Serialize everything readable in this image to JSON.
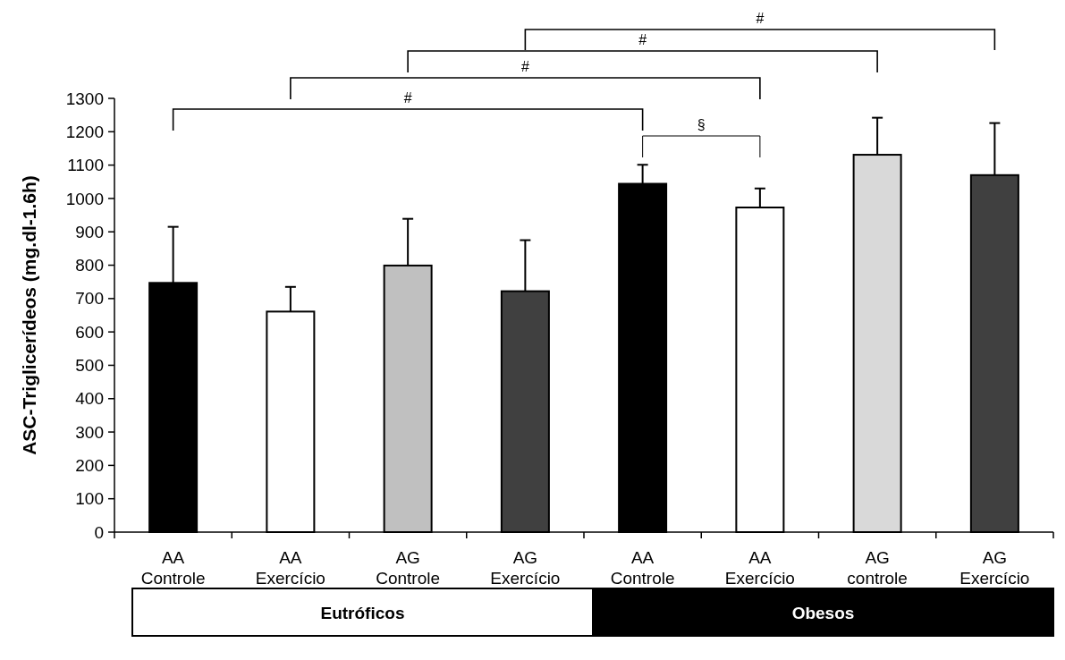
{
  "chart_data": {
    "type": "bar",
    "ylabel": "ASC-Triglicerídeos  (mg.dl-1.6h)",
    "categories": [
      "AA Controle",
      "AA Exercício",
      "AG Controle",
      "AG Exercício",
      "AA Controle",
      "AA Exercício",
      "AG controle",
      "AG Exercício"
    ],
    "values": [
      747,
      661,
      799,
      722,
      1044,
      973,
      1131,
      1070
    ],
    "colors": [
      "#000000",
      "#ffffff",
      "#c0c0c0",
      "#404040",
      "#000000",
      "#ffffff",
      "#d9d9d9",
      "#404040"
    ],
    "errors": [
      [
        747,
        915
      ],
      [
        661,
        735
      ],
      [
        799,
        939
      ],
      [
        722,
        875
      ],
      [
        1044,
        1101
      ],
      [
        973,
        1030
      ],
      [
        1131,
        1242
      ],
      [
        1070,
        1226
      ]
    ],
    "ylim": [
      0,
      1300
    ],
    "yticks": [
      0,
      100,
      200,
      300,
      400,
      500,
      600,
      700,
      800,
      900,
      1000,
      1100,
      1200,
      1300
    ],
    "grid": false,
    "annotations": [
      "#",
      "#",
      "#",
      "#",
      "§",
      "Eutróficos",
      "Obesos"
    ]
  }
}
